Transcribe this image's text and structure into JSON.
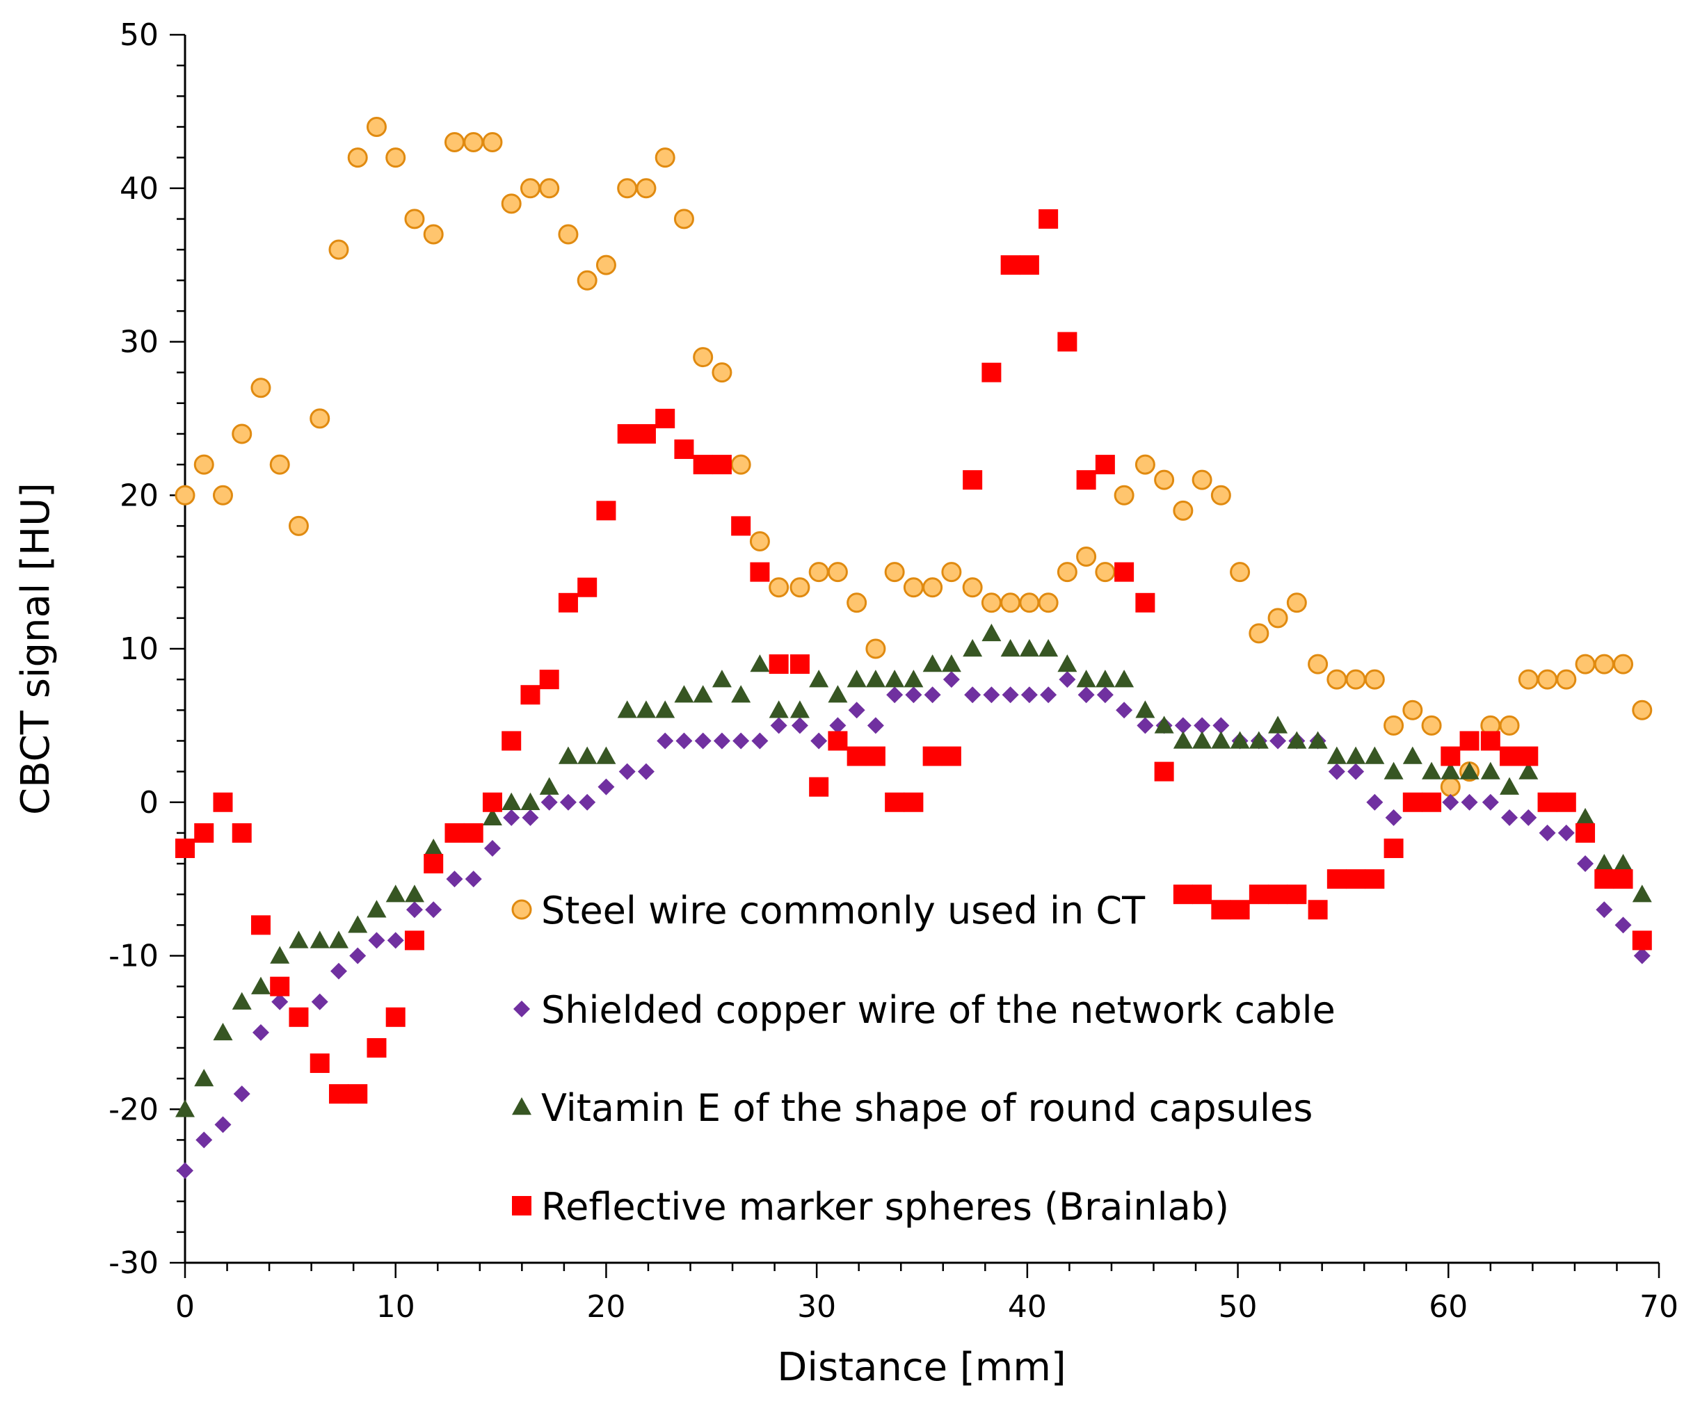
{
  "chart_data": {
    "type": "scatter",
    "title": "",
    "xlabel": "Distance [mm]",
    "ylabel": "CBCT signal [HU]",
    "xlim": [
      0,
      70
    ],
    "ylim": [
      -30,
      50
    ],
    "x_ticks": [
      "0",
      "10",
      "20",
      "30",
      "40",
      "50",
      "60",
      "70"
    ],
    "y_ticks": [
      "-30",
      "-20",
      "-10",
      "0",
      "10",
      "20",
      "30",
      "40",
      "50"
    ],
    "grid": false,
    "legend_position": "center",
    "series": [
      {
        "name": "Steel wire commonly used in CT",
        "marker": "circle",
        "color": "#FFC56E",
        "edge_color": "#E08A10",
        "x": [
          0,
          0.9,
          1.8,
          2.7,
          3.6,
          4.5,
          5.4,
          6.4,
          7.3,
          8.2,
          9.1,
          10.0,
          10.9,
          11.8,
          12.8,
          13.7,
          14.6,
          15.5,
          16.4,
          17.3,
          18.2,
          19.1,
          20.0,
          21.0,
          21.9,
          22.8,
          23.7,
          24.6,
          25.5,
          26.4,
          27.3,
          28.2,
          29.2,
          30.1,
          31.0,
          31.9,
          32.8,
          33.7,
          34.6,
          35.5,
          36.4,
          37.4,
          38.3,
          39.2,
          40.1,
          41.0,
          41.9,
          42.8,
          43.7,
          44.6,
          45.6,
          46.5,
          47.4,
          48.3,
          49.2,
          50.1,
          51.0,
          51.9,
          52.8,
          53.8,
          54.7,
          55.6,
          56.5,
          57.4,
          58.3,
          59.2,
          60.1,
          61.0,
          62.0,
          62.9,
          63.8,
          64.7,
          65.6,
          66.5,
          67.4,
          68.3,
          69.2
        ],
        "y": [
          20,
          22,
          20,
          24,
          27,
          22,
          18,
          25,
          36,
          42,
          44,
          42,
          38,
          37,
          43,
          43,
          43,
          39,
          40,
          40,
          37,
          34,
          35,
          40,
          40,
          42,
          38,
          29,
          28,
          22,
          17,
          14,
          14,
          15,
          15,
          13,
          10,
          15,
          14,
          14,
          15,
          14,
          13,
          13,
          13,
          13,
          15,
          16,
          15,
          20,
          22,
          21,
          19,
          21,
          20,
          15,
          11,
          12,
          13,
          9,
          8,
          8,
          8,
          5,
          6,
          5,
          1,
          2,
          5,
          5,
          8,
          8,
          8,
          9,
          9,
          9,
          6
        ]
      },
      {
        "name": "Shielded copper wire of the network cable",
        "marker": "diamond",
        "color": "#7030A0",
        "x": [
          0,
          0.9,
          1.8,
          2.7,
          3.6,
          4.5,
          5.4,
          6.4,
          7.3,
          8.2,
          9.1,
          10.0,
          10.9,
          11.8,
          12.8,
          13.7,
          14.6,
          15.5,
          16.4,
          17.3,
          18.2,
          19.1,
          20.0,
          21.0,
          21.9,
          22.8,
          23.7,
          24.6,
          25.5,
          26.4,
          27.3,
          28.2,
          29.2,
          30.1,
          31.0,
          31.9,
          32.8,
          33.7,
          34.6,
          35.5,
          36.4,
          37.4,
          38.3,
          39.2,
          40.1,
          41.0,
          41.9,
          42.8,
          43.7,
          44.6,
          45.6,
          46.5,
          47.4,
          48.3,
          49.2,
          50.1,
          51.0,
          51.9,
          52.8,
          53.8,
          54.7,
          55.6,
          56.5,
          57.4,
          58.3,
          59.2,
          60.1,
          61.0,
          62.0,
          62.9,
          63.8,
          64.7,
          65.6,
          66.5,
          67.4,
          68.3,
          69.2
        ],
        "y": [
          -24,
          -22,
          -21,
          -19,
          -15,
          -13,
          -14,
          -13,
          -11,
          -10,
          -9,
          -9,
          -7,
          -7,
          -5,
          -5,
          -3,
          -1,
          -1,
          0,
          0,
          0,
          1,
          2,
          2,
          4,
          4,
          4,
          4,
          4,
          4,
          5,
          5,
          4,
          5,
          6,
          5,
          7,
          7,
          7,
          8,
          7,
          7,
          7,
          7,
          7,
          8,
          7,
          7,
          6,
          5,
          5,
          5,
          5,
          5,
          4,
          4,
          4,
          4,
          4,
          2,
          2,
          0,
          -1,
          0,
          0,
          0,
          0,
          0,
          -1,
          -1,
          -2,
          -2,
          -4,
          -7,
          -8,
          -10
        ]
      },
      {
        "name": "Vitamin E of the shape of round capsules",
        "marker": "triangle",
        "color": "#375623",
        "x": [
          0,
          0.9,
          1.8,
          2.7,
          3.6,
          4.5,
          5.4,
          6.4,
          7.3,
          8.2,
          9.1,
          10.0,
          10.9,
          11.8,
          12.8,
          13.7,
          14.6,
          15.5,
          16.4,
          17.3,
          18.2,
          19.1,
          20.0,
          21.0,
          21.9,
          22.8,
          23.7,
          24.6,
          25.5,
          26.4,
          27.3,
          28.2,
          29.2,
          30.1,
          31.0,
          31.9,
          32.8,
          33.7,
          34.6,
          35.5,
          36.4,
          37.4,
          38.3,
          39.2,
          40.1,
          41.0,
          41.9,
          42.8,
          43.7,
          44.6,
          45.6,
          46.5,
          47.4,
          48.3,
          49.2,
          50.1,
          51.0,
          51.9,
          52.8,
          53.8,
          54.7,
          55.6,
          56.5,
          57.4,
          58.3,
          59.2,
          60.1,
          61.0,
          62.0,
          62.9,
          63.8,
          64.7,
          65.6,
          66.5,
          67.4,
          68.3,
          69.2
        ],
        "y": [
          -20,
          -18,
          -15,
          -13,
          -12,
          -10,
          -9,
          -9,
          -9,
          -8,
          -7,
          -6,
          -6,
          -3,
          -2,
          -2,
          -1,
          0,
          0,
          1,
          3,
          3,
          3,
          6,
          6,
          6,
          7,
          7,
          8,
          7,
          9,
          6,
          6,
          8,
          7,
          8,
          8,
          8,
          8,
          9,
          9,
          10,
          11,
          10,
          10,
          10,
          9,
          8,
          8,
          8,
          6,
          5,
          4,
          4,
          4,
          4,
          4,
          5,
          4,
          4,
          3,
          3,
          3,
          2,
          3,
          2,
          2,
          2,
          2,
          1,
          2,
          0,
          0,
          -1,
          -4,
          -4,
          -6
        ]
      },
      {
        "name": "Reflective marker spheres (Brainlab)",
        "marker": "square",
        "color": "#FF0000",
        "x": [
          0,
          0.9,
          1.8,
          2.7,
          3.6,
          4.5,
          5.4,
          6.4,
          7.3,
          8.2,
          9.1,
          10.0,
          10.9,
          11.8,
          12.8,
          13.7,
          14.6,
          15.5,
          16.4,
          17.3,
          18.2,
          19.1,
          20.0,
          21.0,
          21.9,
          22.8,
          23.7,
          24.6,
          25.5,
          26.4,
          27.3,
          28.2,
          29.2,
          30.1,
          31.0,
          31.9,
          32.8,
          33.7,
          34.6,
          35.5,
          36.4,
          37.4,
          38.3,
          39.2,
          40.1,
          41.0,
          41.9,
          42.8,
          43.7,
          44.6,
          45.6,
          46.5,
          47.4,
          48.3,
          49.2,
          50.1,
          51.0,
          51.9,
          52.8,
          53.8,
          54.7,
          55.6,
          56.5,
          57.4,
          58.3,
          59.2,
          60.1,
          61.0,
          62.0,
          62.9,
          63.8,
          64.7,
          65.6,
          66.5,
          67.4,
          68.3,
          69.2
        ],
        "y": [
          -3,
          -2,
          0,
          -2,
          -8,
          -12,
          -14,
          -17,
          -19,
          -19,
          -16,
          -14,
          -9,
          -4,
          -2,
          -2,
          0,
          4,
          7,
          8,
          13,
          14,
          19,
          24,
          24,
          25,
          23,
          22,
          22,
          18,
          15,
          9,
          9,
          1,
          4,
          3,
          3,
          0,
          0,
          3,
          3,
          21,
          28,
          35,
          35,
          38,
          30,
          21,
          22,
          15,
          13,
          2,
          -6,
          -6,
          -7,
          -7,
          -6,
          -6,
          -6,
          -7,
          -5,
          -5,
          -5,
          -3,
          0,
          0,
          3,
          4,
          4,
          3,
          3,
          0,
          0,
          -2,
          -5,
          -5,
          -9
        ]
      }
    ]
  }
}
